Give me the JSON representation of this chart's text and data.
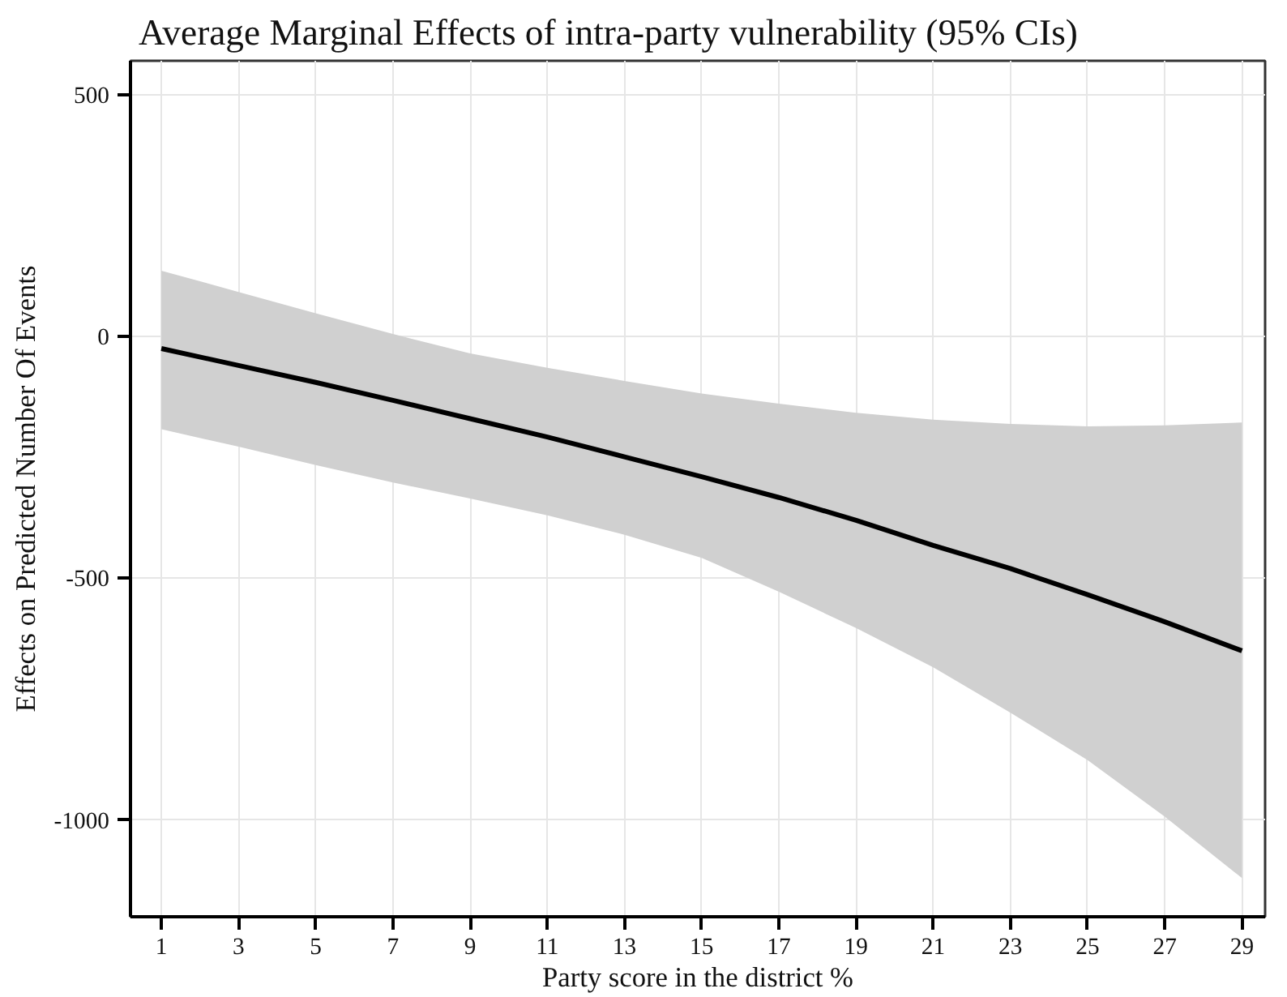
{
  "chart_data": {
    "type": "line",
    "title": "Average Marginal Effects of intra-party vulnerability (95% CIs)",
    "xlabel": "Party score in the district %",
    "ylabel": "Effects on Predicted Number Of Events",
    "x": [
      1,
      3,
      5,
      7,
      9,
      11,
      13,
      15,
      17,
      19,
      21,
      23,
      25,
      27,
      29
    ],
    "series": [
      {
        "color": "#000000",
        "values": [
          -25,
          -60,
          -95,
          -132,
          -170,
          -208,
          -249,
          -290,
          -333,
          -380,
          -432,
          -480,
          -534,
          -590,
          -650
        ],
        "lower": [
          -192,
          -228,
          -266,
          -302,
          -335,
          -370,
          -410,
          -458,
          -528,
          -603,
          -684,
          -778,
          -876,
          -993,
          -1120
        ],
        "upper": [
          136,
          92,
          48,
          5,
          -35,
          -65,
          -92,
          -118,
          -139,
          -158,
          -172,
          -181,
          -186,
          -184,
          -178
        ]
      }
    ],
    "xlim": [
      0.2,
      29.6
    ],
    "ylim": [
      -1200,
      570
    ],
    "xticks": [
      1,
      3,
      5,
      7,
      9,
      11,
      13,
      15,
      17,
      19,
      21,
      23,
      25,
      27,
      29
    ],
    "yticks": [
      500,
      0,
      -500,
      -1000
    ],
    "grid": true,
    "marker": "none",
    "line_style": "solid"
  }
}
